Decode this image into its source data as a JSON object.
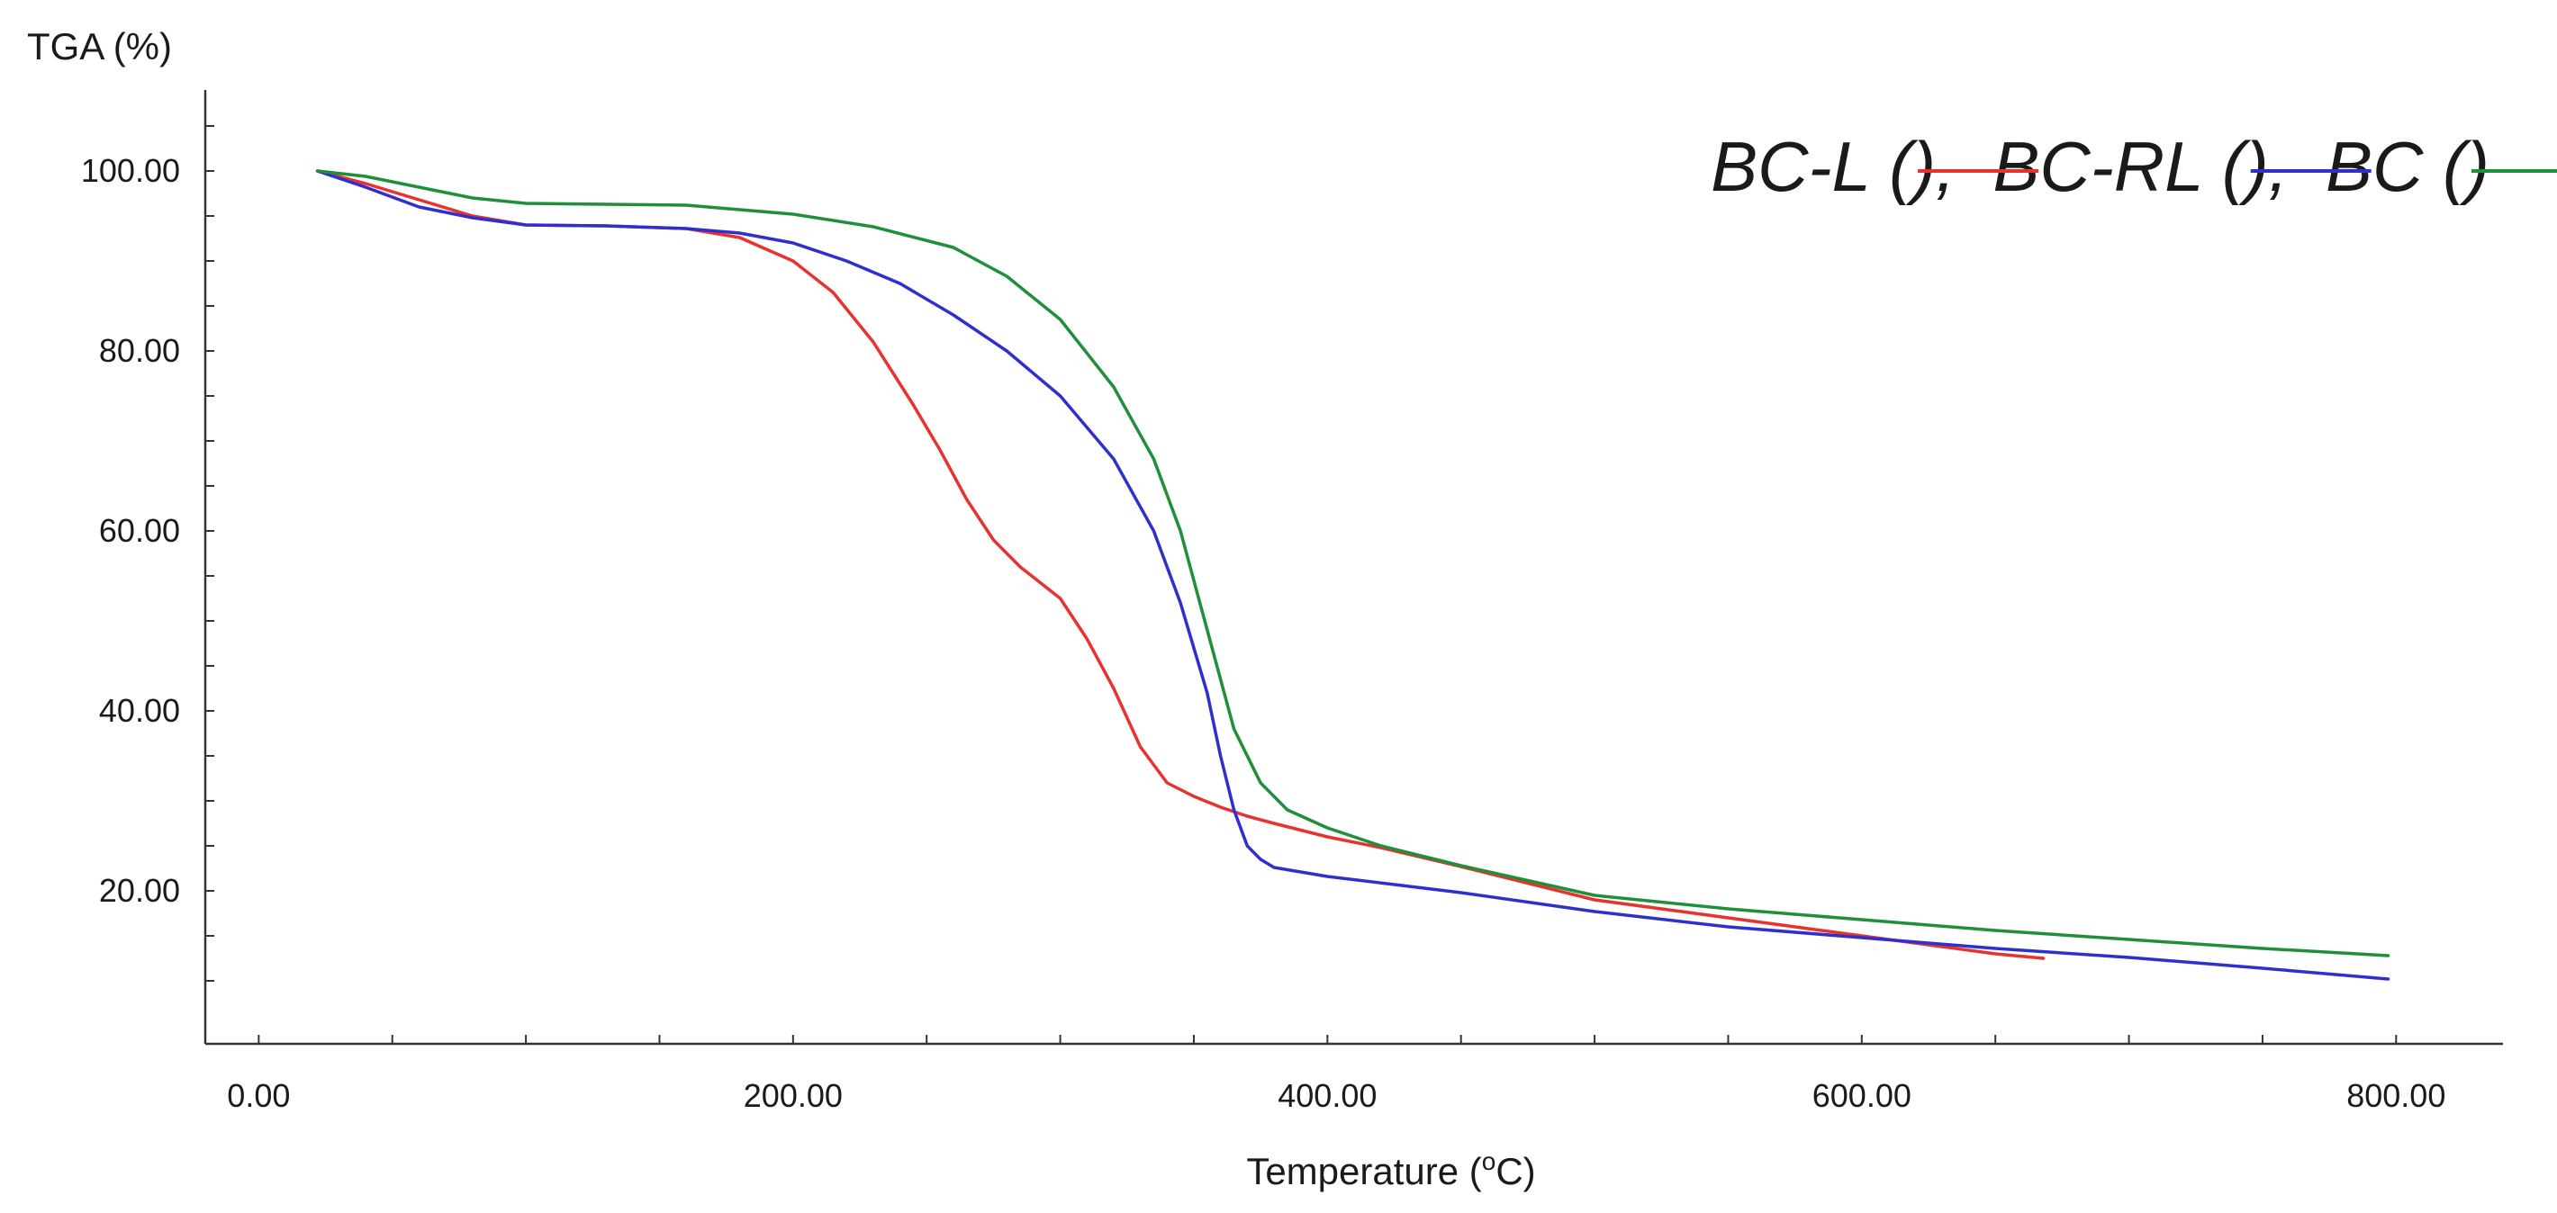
{
  "chart_data": {
    "type": "line",
    "ylabel": "TGA (%)",
    "xlabel": "Temperature (",
    "xlabel_sup": "o",
    "xlabel_end": "C)",
    "xlim": [
      -20,
      840
    ],
    "ylim": [
      3,
      109
    ],
    "x_ticks": [
      {
        "value": 0,
        "label": "0.00"
      },
      {
        "value": 200,
        "label": "200.00"
      },
      {
        "value": 400,
        "label": "400.00"
      },
      {
        "value": 600,
        "label": "600.00"
      },
      {
        "value": 800,
        "label": "800.00"
      }
    ],
    "y_ticks": [
      {
        "value": 20,
        "label": "20.00"
      },
      {
        "value": 40,
        "label": "40.00"
      },
      {
        "value": 60,
        "label": "60.00"
      },
      {
        "value": 80,
        "label": "80.00"
      },
      {
        "value": 100,
        "label": "100.00"
      }
    ],
    "legend": {
      "position": "top-right",
      "entries": [
        {
          "prefix": "BC-L (",
          "suffix": "),",
          "color": "#e8322e"
        },
        {
          "prefix": "BC-RL (",
          "suffix": "),",
          "color": "#2f2fd0"
        },
        {
          "prefix": "BC (",
          "suffix": ")",
          "color": "#1f8f3a"
        }
      ]
    },
    "series": [
      {
        "name": "BC-L",
        "color": "#e8322e",
        "x": [
          22,
          40,
          60,
          80,
          100,
          130,
          160,
          180,
          200,
          215,
          230,
          245,
          255,
          265,
          275,
          285,
          300,
          310,
          320,
          330,
          340,
          350,
          360,
          370,
          380,
          400,
          420,
          450,
          500,
          550,
          600,
          650,
          668
        ],
        "y": [
          100,
          98.6,
          96.8,
          95,
          94,
          93.9,
          93.6,
          92.6,
          90,
          86.5,
          81,
          74,
          69,
          63.5,
          59,
          56,
          52.5,
          48,
          42.5,
          36,
          32,
          30.5,
          29.3,
          28.3,
          27.5,
          26,
          24.8,
          22.7,
          19,
          17,
          15,
          13,
          12.5
        ]
      },
      {
        "name": "BC-RL",
        "color": "#2f2fd0",
        "x": [
          22,
          40,
          60,
          80,
          100,
          130,
          160,
          180,
          200,
          220,
          240,
          260,
          280,
          300,
          320,
          335,
          345,
          355,
          360,
          365,
          370,
          375,
          380,
          400,
          450,
          500,
          550,
          600,
          650,
          700,
          750,
          797
        ],
        "y": [
          100,
          98.2,
          96,
          94.8,
          94,
          93.9,
          93.6,
          93.1,
          92,
          90,
          87.5,
          84,
          80,
          75,
          68,
          60,
          52,
          42,
          35,
          29,
          25,
          23.5,
          22.6,
          21.6,
          19.8,
          17.7,
          16,
          14.8,
          13.6,
          12.6,
          11.4,
          10.2
        ]
      },
      {
        "name": "BC",
        "color": "#1f8f3a",
        "x": [
          22,
          40,
          60,
          80,
          100,
          130,
          160,
          200,
          230,
          260,
          280,
          300,
          320,
          335,
          345,
          355,
          365,
          375,
          385,
          400,
          420,
          450,
          500,
          550,
          600,
          650,
          700,
          750,
          797
        ],
        "y": [
          100,
          99.4,
          98.2,
          97,
          96.4,
          96.3,
          96.2,
          95.2,
          93.8,
          91.5,
          88.3,
          83.5,
          76,
          68,
          60,
          49,
          38,
          32,
          29,
          27,
          25,
          22.8,
          19.5,
          18,
          16.8,
          15.6,
          14.6,
          13.6,
          12.8
        ]
      }
    ]
  }
}
